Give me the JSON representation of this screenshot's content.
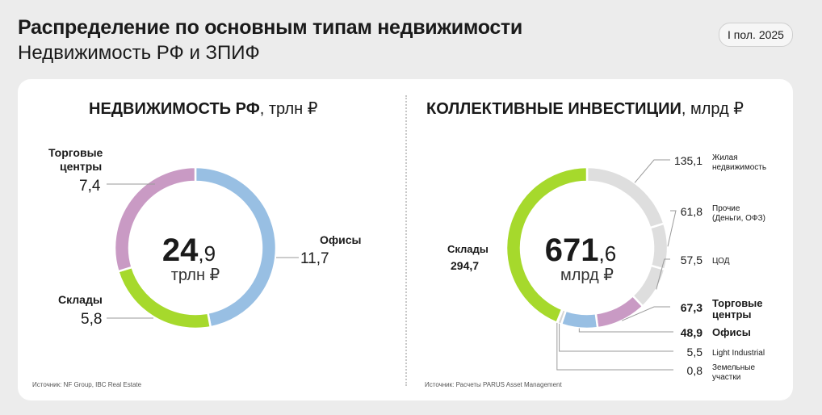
{
  "header": {
    "title": "Распределение по основным типам недвижимости",
    "subtitle": "Недвижимость РФ и ЗПИФ",
    "period": "I пол. 2025"
  },
  "chart_data": [
    {
      "type": "pie",
      "title": "НЕДВИЖИМОСТЬ РФ",
      "unit": ", трлн ₽",
      "total_int": "24",
      "total_dec": ",9",
      "total_unit": "трлн ₽",
      "source": "Источник: NF Group, IBC Real Estate",
      "slices": [
        {
          "name": "Офисы",
          "value": 11.7,
          "label": "11,7",
          "color": "#98bfe3"
        },
        {
          "name": "Склады",
          "value": 5.8,
          "label": "5,8",
          "color": "#a6d92c"
        },
        {
          "name": "Торговые центры",
          "value": 7.4,
          "label": "7,4",
          "color": "#c99ac4"
        }
      ]
    },
    {
      "type": "pie",
      "title": "КОЛЛЕКТИВНЫЕ ИНВЕСТИЦИИ",
      "unit": ", млрд ₽",
      "total_int": "671",
      "total_dec": ",6",
      "total_unit": "млрд ₽",
      "source": "Источник: Расчеты PARUS Asset Management",
      "slices": [
        {
          "name": "Жилая недвижимость",
          "lines": [
            "Жилая",
            "недвижимость"
          ],
          "value": 135.1,
          "label": "135,1",
          "color": "#dedede"
        },
        {
          "name": "Прочие (Деньги, ОФЗ)",
          "lines": [
            "Прочие",
            "(Деньги, ОФЗ)"
          ],
          "value": 61.8,
          "label": "61,8",
          "color": "#dedede"
        },
        {
          "name": "ЦОД",
          "lines": [
            "ЦОД"
          ],
          "value": 57.5,
          "label": "57,5",
          "color": "#dedede"
        },
        {
          "name": "Торговые центры",
          "lines": [
            "Торговые",
            "центры"
          ],
          "value": 67.3,
          "label": "67,3",
          "color": "#c99ac4",
          "bold": true
        },
        {
          "name": "Офисы",
          "lines": [
            "Офисы"
          ],
          "value": 48.9,
          "label": "48,9",
          "color": "#98bfe3",
          "bold": true
        },
        {
          "name": "Light Industrial",
          "lines": [
            "Light Industrial"
          ],
          "value": 5.5,
          "label": "5,5",
          "color": "#d5d5d5"
        },
        {
          "name": "Земельные участки",
          "lines": [
            "Земельные",
            "участки"
          ],
          "value": 0.8,
          "label": "0,8",
          "color": "#cccccc"
        },
        {
          "name": "Склады",
          "lines": [
            "Склады"
          ],
          "value": 294.7,
          "label": "294,7",
          "color": "#a6d92c",
          "bold": true
        }
      ]
    }
  ]
}
